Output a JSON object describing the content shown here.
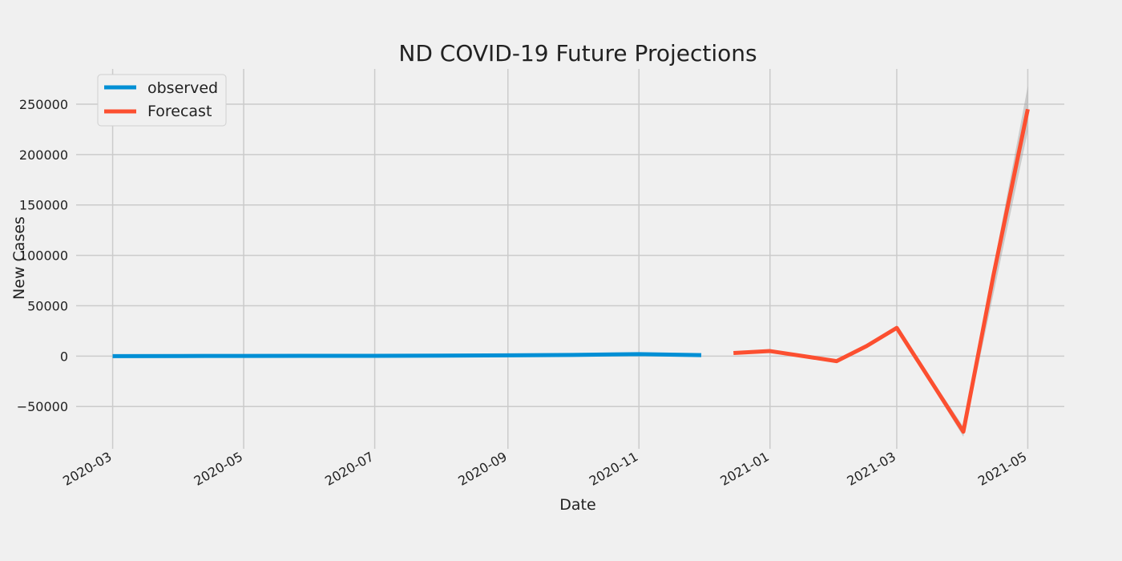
{
  "chart_data": {
    "type": "line",
    "title": "ND COVID-19 Future Projections",
    "xlabel": "Date",
    "ylabel": "New Cases",
    "x_ticks": [
      "2020-03",
      "2020-05",
      "2020-07",
      "2020-09",
      "2020-11",
      "2021-01",
      "2021-03",
      "2021-05"
    ],
    "y_ticks": [
      "250000",
      "200000",
      "150000",
      "100000",
      "50000",
      "0",
      "−50000"
    ],
    "ylim": [
      -92000,
      285000
    ],
    "grid": true,
    "legend": "top-left",
    "colors": {
      "background": "#f0f0f0",
      "grid": "#cbcbcb",
      "observed": "#008fd5",
      "forecast": "#fc4f30",
      "band": "#9e9e9e"
    },
    "series": [
      {
        "name": "observed",
        "points": [
          {
            "x": "2020-03-01",
            "y": 0
          },
          {
            "x": "2020-04-01",
            "y": 100
          },
          {
            "x": "2020-05-01",
            "y": 200
          },
          {
            "x": "2020-06-01",
            "y": 250
          },
          {
            "x": "2020-07-01",
            "y": 300
          },
          {
            "x": "2020-08-01",
            "y": 500
          },
          {
            "x": "2020-09-01",
            "y": 800
          },
          {
            "x": "2020-10-01",
            "y": 1200
          },
          {
            "x": "2020-11-01",
            "y": 2000
          },
          {
            "x": "2020-11-30",
            "y": 1000
          }
        ]
      },
      {
        "name": "Forecast",
        "points": [
          {
            "x": "2020-12-15",
            "y": 3000
          },
          {
            "x": "2021-01-01",
            "y": 5000
          },
          {
            "x": "2021-02-01",
            "y": -5000
          },
          {
            "x": "2021-02-15",
            "y": 10000
          },
          {
            "x": "2021-03-01",
            "y": 28000
          },
          {
            "x": "2021-04-01",
            "y": -75000
          },
          {
            "x": "2021-04-15",
            "y": 80000
          },
          {
            "x": "2021-05-01",
            "y": 245000
          }
        ]
      }
    ],
    "confidence_band": [
      {
        "x": "2021-03-01",
        "lower": 27000,
        "upper": 29000
      },
      {
        "x": "2021-04-01",
        "lower": -80000,
        "upper": -70000
      },
      {
        "x": "2021-05-01",
        "lower": 223000,
        "upper": 268000
      }
    ]
  }
}
